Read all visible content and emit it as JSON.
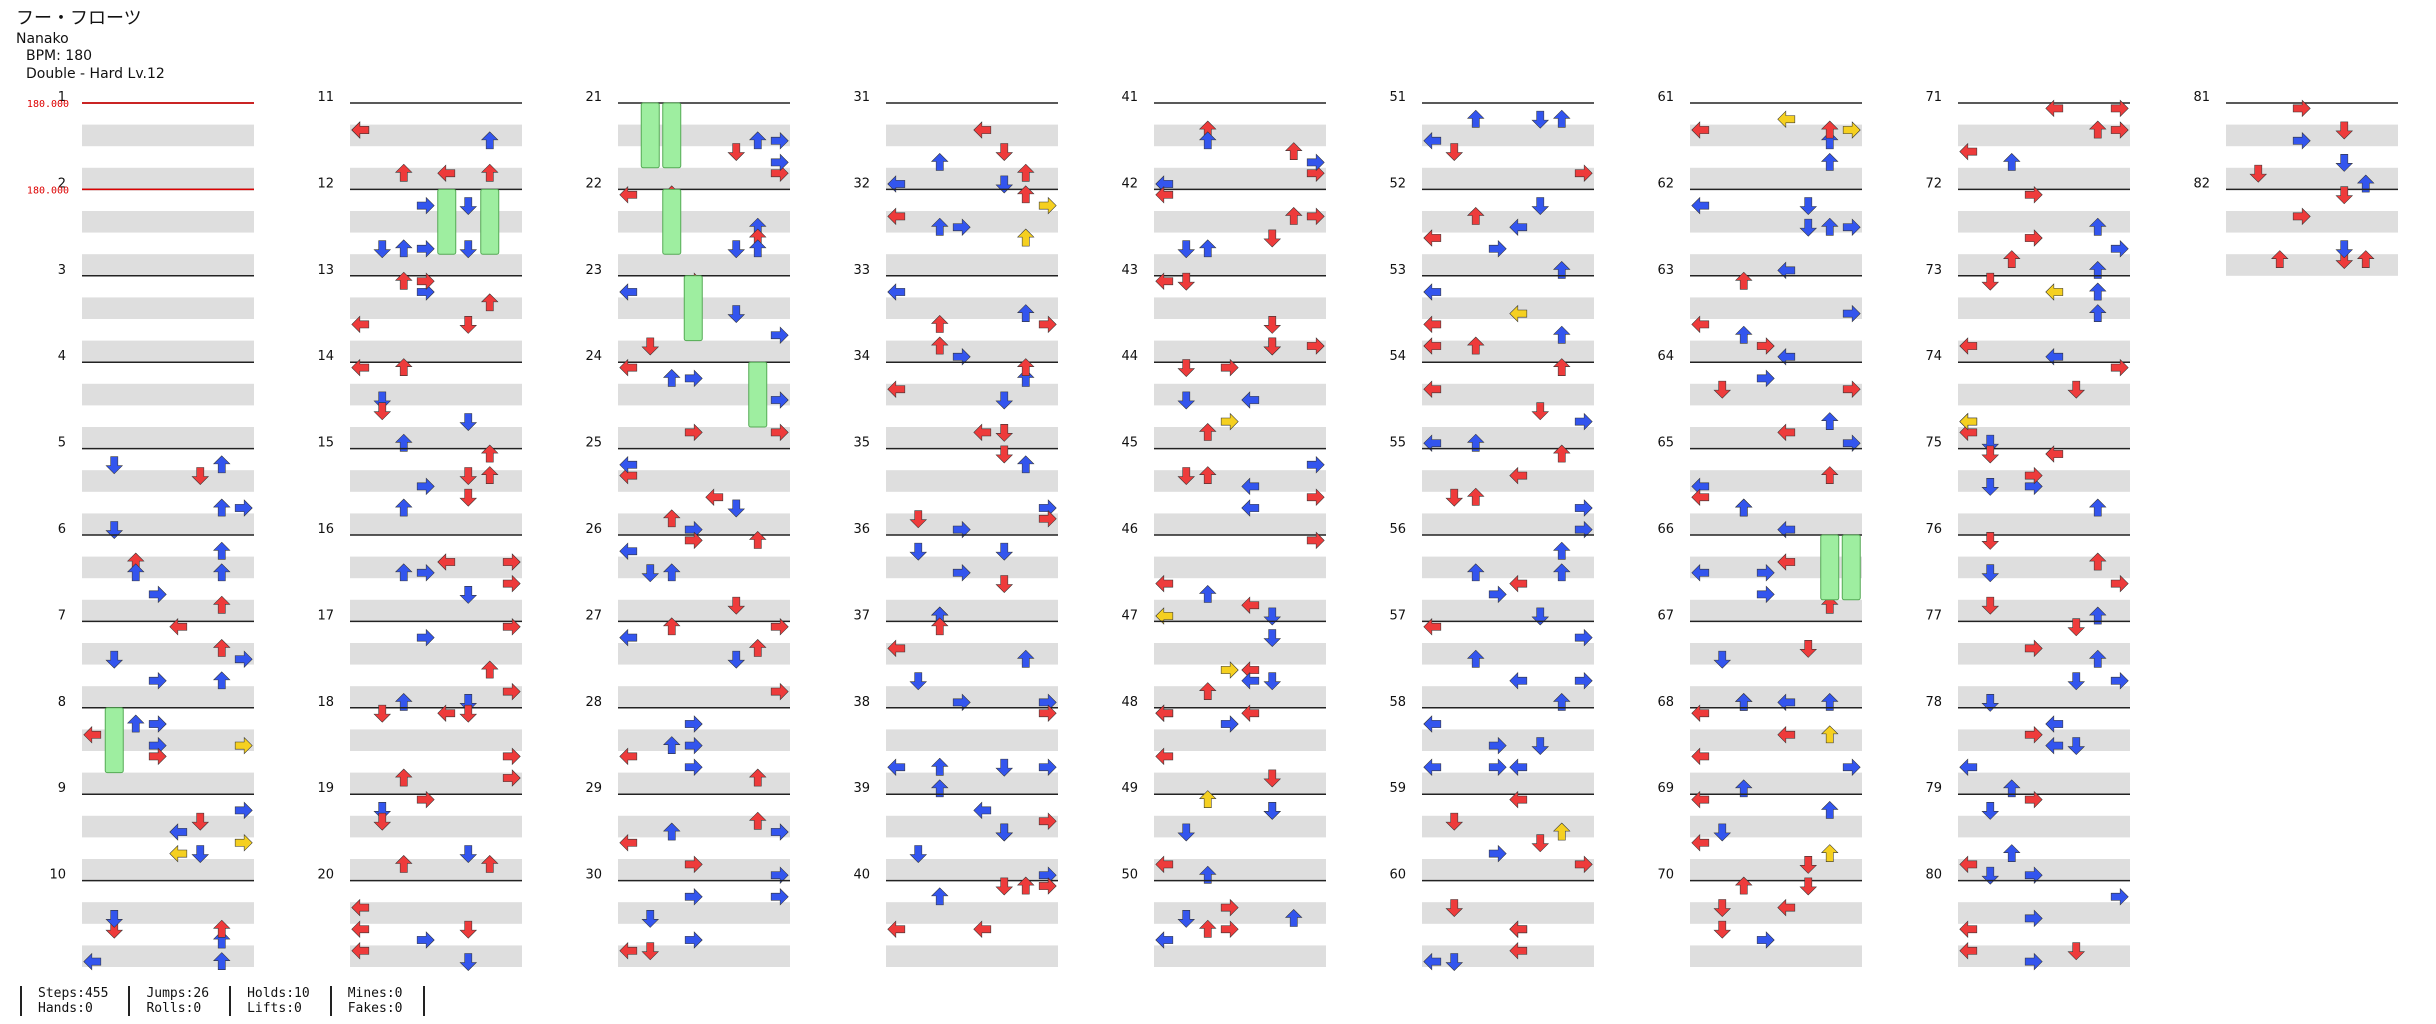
{
  "song": {
    "title": "フー・フローツ",
    "artist": "Nanako",
    "bpm_text": "BPM: 180",
    "difficulty_text": "Double - Hard  Lv.12"
  },
  "chart": {
    "measures": 82,
    "measures_per_column": 10,
    "columns": 9,
    "lanes": 8,
    "bpm_markers": [
      {
        "measure": 1,
        "label": "180.000"
      },
      {
        "measure": 2,
        "label": "180.000"
      }
    ]
  },
  "colors": {
    "red": "#ee3b3b",
    "blue": "#3355ee",
    "yellow": "#f5d020",
    "purple": "#a63bd9",
    "hold": "#9eeea0",
    "band": "#dedede",
    "line": "#222222",
    "bpm": "#dd0000"
  },
  "stats": [
    {
      "a": "Steps:455",
      "b": "Hands:0"
    },
    {
      "a": "Jumps:26",
      "b": "Rolls:0"
    },
    {
      "a": "Holds:10",
      "b": "Lifts:0"
    },
    {
      "a": "Mines:0",
      "b": "Fakes:0"
    }
  ]
}
